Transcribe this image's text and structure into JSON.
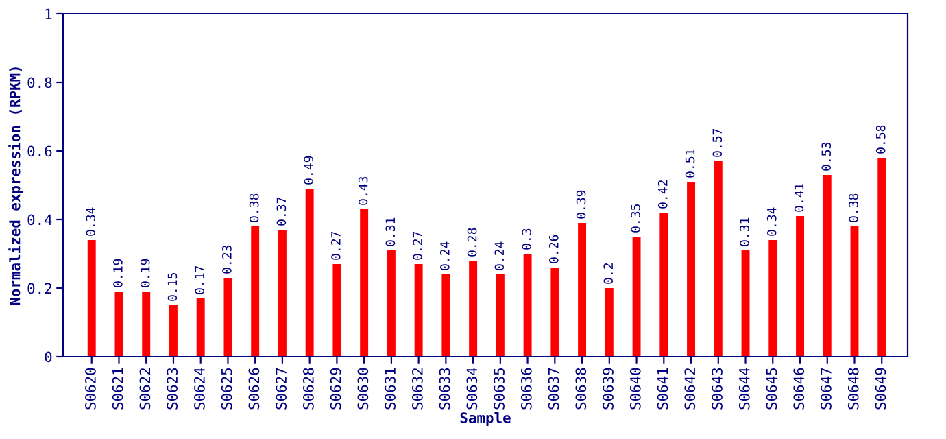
{
  "chart_data": {
    "type": "bar",
    "xlabel": "Sample",
    "ylabel": "Normalized expression (RPKM)",
    "categories": [
      "S0620",
      "S0621",
      "S0622",
      "S0623",
      "S0624",
      "S0625",
      "S0626",
      "S0627",
      "S0628",
      "S0629",
      "S0630",
      "S0631",
      "S0632",
      "S0633",
      "S0634",
      "S0635",
      "S0636",
      "S0637",
      "S0638",
      "S0639",
      "S0640",
      "S0641",
      "S0642",
      "S0643",
      "S0644",
      "S0645",
      "S0646",
      "S0647",
      "S0648",
      "S0649"
    ],
    "values": [
      0.34,
      0.19,
      0.19,
      0.15,
      0.17,
      0.23,
      0.38,
      0.37,
      0.49,
      0.27,
      0.43,
      0.31,
      0.27,
      0.24,
      0.28,
      0.24,
      0.3,
      0.26,
      0.39,
      0.2,
      0.35,
      0.42,
      0.51,
      0.57,
      0.31,
      0.34,
      0.41,
      0.53,
      0.38,
      0.58
    ],
    "color": "#ff0000",
    "ylim": [
      0,
      1
    ],
    "yticks": [
      {
        "value": 0,
        "label": "0"
      },
      {
        "value": 0.2,
        "label": "0.2"
      },
      {
        "value": 0.4,
        "label": "0.4"
      },
      {
        "value": 0.6,
        "label": "0.6"
      },
      {
        "value": 0.8,
        "label": "0.8"
      },
      {
        "value": 1,
        "label": "1"
      }
    ],
    "data_labels": true,
    "grid": false,
    "legend": false
  }
}
